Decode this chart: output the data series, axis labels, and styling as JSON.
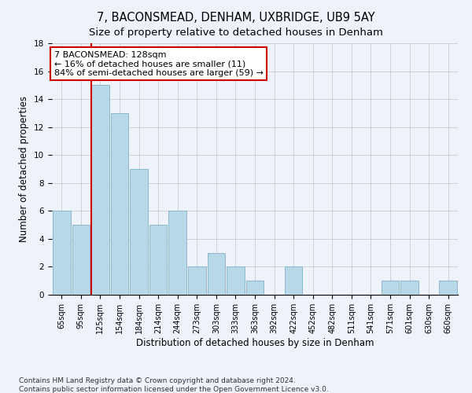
{
  "title": "7, BACONSMEAD, DENHAM, UXBRIDGE, UB9 5AY",
  "subtitle": "Size of property relative to detached houses in Denham",
  "xlabel": "Distribution of detached houses by size in Denham",
  "ylabel": "Number of detached properties",
  "categories": [
    "65sqm",
    "95sqm",
    "125sqm",
    "154sqm",
    "184sqm",
    "214sqm",
    "244sqm",
    "273sqm",
    "303sqm",
    "333sqm",
    "363sqm",
    "392sqm",
    "422sqm",
    "452sqm",
    "482sqm",
    "511sqm",
    "541sqm",
    "571sqm",
    "601sqm",
    "630sqm",
    "660sqm"
  ],
  "values": [
    6,
    5,
    15,
    13,
    9,
    5,
    6,
    2,
    3,
    2,
    1,
    0,
    2,
    0,
    0,
    0,
    0,
    1,
    1,
    0,
    1
  ],
  "bar_color": "#b8d8e8",
  "bar_edge_color": "#8ab8cc",
  "property_line_index": 2,
  "annotation_line1": "7 BACONSMEAD: 128sqm",
  "annotation_line2": "← 16% of detached houses are smaller (11)",
  "annotation_line3": "84% of semi-detached houses are larger (59) →",
  "annotation_box_color": "#ffffff",
  "annotation_box_edge_color": "#cc0000",
  "ylim": [
    0,
    18
  ],
  "property_line_color": "#cc0000",
  "footer": "Contains HM Land Registry data © Crown copyright and database right 2024.\nContains public sector information licensed under the Open Government Licence v3.0.",
  "background_color": "#eef2fa",
  "grid_color": "#cccccc",
  "title_fontsize": 10.5,
  "subtitle_fontsize": 9.5,
  "axis_label_fontsize": 8.5,
  "tick_fontsize": 7,
  "footer_fontsize": 6.5,
  "annotation_fontsize": 8
}
